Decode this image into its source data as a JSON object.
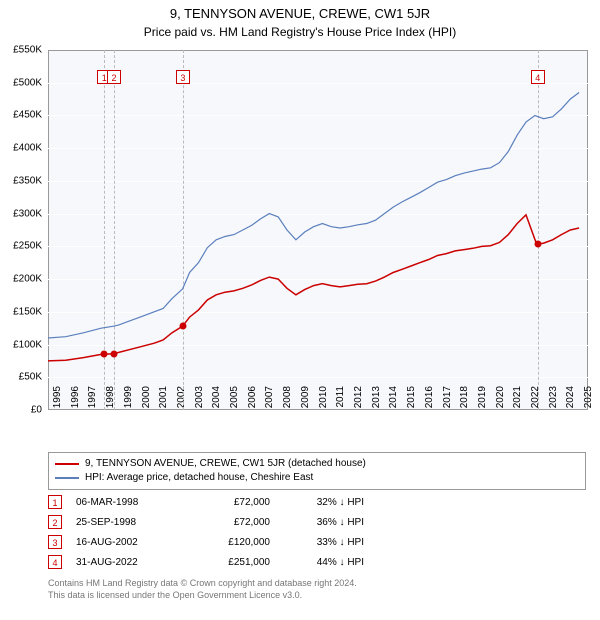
{
  "title": "9, TENNYSON AVENUE, CREWE, CW1 5JR",
  "subtitle": "Price paid vs. HM Land Registry's House Price Index (HPI)",
  "chart": {
    "type": "line",
    "background_color": "#f6f8fc",
    "grid_color": "#ffffff",
    "border_color": "#999999",
    "ylim": [
      0,
      550
    ],
    "ytick_step": 50,
    "ytick_prefix": "£",
    "ytick_suffix": "K",
    "xlim": [
      1995,
      2025.5
    ],
    "xticks": [
      1995,
      1996,
      1997,
      1998,
      1999,
      2000,
      2001,
      2002,
      2003,
      2004,
      2005,
      2006,
      2007,
      2008,
      2009,
      2010,
      2011,
      2012,
      2013,
      2014,
      2015,
      2016,
      2017,
      2018,
      2019,
      2020,
      2021,
      2022,
      2023,
      2024,
      2025
    ],
    "label_fontsize": 10,
    "series": [
      {
        "name": "hpi",
        "label": "HPI: Average price, detached house, Cheshire East",
        "color": "#5b7fbd",
        "line_width": 1.2,
        "data": [
          [
            1995,
            110
          ],
          [
            1996,
            112
          ],
          [
            1997,
            118
          ],
          [
            1998,
            125
          ],
          [
            1998.7,
            128
          ],
          [
            1999,
            130
          ],
          [
            2000,
            140
          ],
          [
            2001,
            150
          ],
          [
            2001.5,
            155
          ],
          [
            2002,
            170
          ],
          [
            2002.6,
            185
          ],
          [
            2003,
            210
          ],
          [
            2003.5,
            225
          ],
          [
            2004,
            248
          ],
          [
            2004.5,
            260
          ],
          [
            2005,
            265
          ],
          [
            2005.5,
            268
          ],
          [
            2006,
            275
          ],
          [
            2006.5,
            282
          ],
          [
            2007,
            292
          ],
          [
            2007.5,
            300
          ],
          [
            2008,
            295
          ],
          [
            2008.5,
            275
          ],
          [
            2009,
            260
          ],
          [
            2009.5,
            272
          ],
          [
            2010,
            280
          ],
          [
            2010.5,
            285
          ],
          [
            2011,
            280
          ],
          [
            2011.5,
            278
          ],
          [
            2012,
            280
          ],
          [
            2012.5,
            283
          ],
          [
            2013,
            285
          ],
          [
            2013.5,
            290
          ],
          [
            2014,
            300
          ],
          [
            2014.5,
            310
          ],
          [
            2015,
            318
          ],
          [
            2015.5,
            325
          ],
          [
            2016,
            332
          ],
          [
            2016.5,
            340
          ],
          [
            2017,
            348
          ],
          [
            2017.5,
            352
          ],
          [
            2018,
            358
          ],
          [
            2018.5,
            362
          ],
          [
            2019,
            365
          ],
          [
            2019.5,
            368
          ],
          [
            2020,
            370
          ],
          [
            2020.5,
            378
          ],
          [
            2021,
            395
          ],
          [
            2021.5,
            420
          ],
          [
            2022,
            440
          ],
          [
            2022.5,
            450
          ],
          [
            2023,
            445
          ],
          [
            2023.5,
            448
          ],
          [
            2024,
            460
          ],
          [
            2024.5,
            475
          ],
          [
            2025,
            485
          ]
        ]
      },
      {
        "name": "property",
        "label": "9, TENNYSON AVENUE, CREWE, CW1 5JR (detached house)",
        "color": "#cc0000",
        "line_width": 1.5,
        "data": [
          [
            1995,
            75
          ],
          [
            1996,
            76
          ],
          [
            1997,
            80
          ],
          [
            1998,
            85
          ],
          [
            1998.7,
            86
          ],
          [
            1999,
            88
          ],
          [
            2000,
            95
          ],
          [
            2001,
            102
          ],
          [
            2001.5,
            107
          ],
          [
            2002,
            118
          ],
          [
            2002.6,
            128
          ],
          [
            2003,
            142
          ],
          [
            2003.5,
            153
          ],
          [
            2004,
            168
          ],
          [
            2004.5,
            176
          ],
          [
            2005,
            180
          ],
          [
            2005.5,
            182
          ],
          [
            2006,
            186
          ],
          [
            2006.5,
            191
          ],
          [
            2007,
            198
          ],
          [
            2007.5,
            203
          ],
          [
            2008,
            200
          ],
          [
            2008.5,
            186
          ],
          [
            2009,
            176
          ],
          [
            2009.5,
            184
          ],
          [
            2010,
            190
          ],
          [
            2010.5,
            193
          ],
          [
            2011,
            190
          ],
          [
            2011.5,
            188
          ],
          [
            2012,
            190
          ],
          [
            2012.5,
            192
          ],
          [
            2013,
            193
          ],
          [
            2013.5,
            197
          ],
          [
            2014,
            203
          ],
          [
            2014.5,
            210
          ],
          [
            2015,
            215
          ],
          [
            2015.5,
            220
          ],
          [
            2016,
            225
          ],
          [
            2016.5,
            230
          ],
          [
            2017,
            236
          ],
          [
            2017.5,
            239
          ],
          [
            2018,
            243
          ],
          [
            2018.5,
            245
          ],
          [
            2019,
            247
          ],
          [
            2019.5,
            250
          ],
          [
            2020,
            251
          ],
          [
            2020.5,
            256
          ],
          [
            2021,
            268
          ],
          [
            2021.5,
            285
          ],
          [
            2022,
            298
          ],
          [
            2022.6,
            253
          ],
          [
            2023,
            255
          ],
          [
            2023.5,
            260
          ],
          [
            2024,
            268
          ],
          [
            2024.5,
            275
          ],
          [
            2025,
            278
          ]
        ]
      }
    ],
    "event_markers": [
      {
        "num": "1",
        "x": 1998.18,
        "top_y": 520,
        "point_y": 85
      },
      {
        "num": "2",
        "x": 1998.73,
        "top_y": 520,
        "point_y": 86
      },
      {
        "num": "3",
        "x": 2002.62,
        "top_y": 520,
        "point_y": 128
      },
      {
        "num": "4",
        "x": 2022.66,
        "top_y": 520,
        "point_y": 253
      }
    ]
  },
  "legend": {
    "items": [
      {
        "color": "#cc0000",
        "label": "9, TENNYSON AVENUE, CREWE, CW1 5JR (detached house)"
      },
      {
        "color": "#5b7fbd",
        "label": "HPI: Average price, detached house, Cheshire East"
      }
    ]
  },
  "events": [
    {
      "num": "1",
      "date": "06-MAR-1998",
      "price": "£72,000",
      "diff": "32%",
      "arrow": "↓",
      "suffix": "HPI"
    },
    {
      "num": "2",
      "date": "25-SEP-1998",
      "price": "£72,000",
      "diff": "36%",
      "arrow": "↓",
      "suffix": "HPI"
    },
    {
      "num": "3",
      "date": "16-AUG-2002",
      "price": "£120,000",
      "diff": "33%",
      "arrow": "↓",
      "suffix": "HPI"
    },
    {
      "num": "4",
      "date": "31-AUG-2022",
      "price": "£251,000",
      "diff": "44%",
      "arrow": "↓",
      "suffix": "HPI"
    }
  ],
  "footer": {
    "line1": "Contains HM Land Registry data © Crown copyright and database right 2024.",
    "line2": "This data is licensed under the Open Government Licence v3.0."
  }
}
